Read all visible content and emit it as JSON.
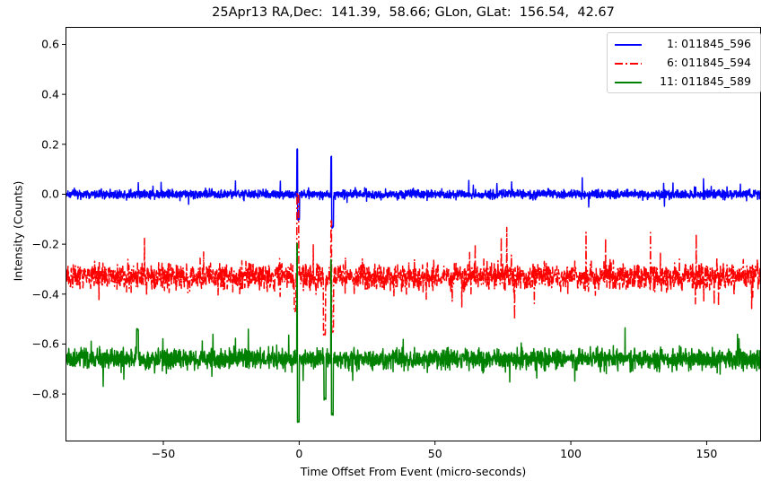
{
  "chart_data": {
    "type": "line",
    "title": "25Apr13 RA,Dec:  141.39,  58.66; GLon, GLat:  156.54,  42.67",
    "xlabel": "Time Offset From Event (micro-seconds)",
    "ylabel": "Intensity (Counts)",
    "xlim": [
      -86,
      170
    ],
    "ylim": [
      -0.99,
      0.67
    ],
    "xticks": [
      -50,
      0,
      50,
      100,
      150
    ],
    "xtick_labels": [
      "−50",
      "0",
      "50",
      "100",
      "150"
    ],
    "yticks": [
      0.6,
      0.4,
      0.2,
      0.0,
      -0.2,
      -0.4,
      -0.6,
      -0.8
    ],
    "ytick_labels": [
      "0.6",
      "0.4",
      "0.2",
      "0.0",
      "−0.2",
      "−0.4",
      "−0.6",
      "−0.8"
    ],
    "grid": false,
    "legend_position": "upper right",
    "series": [
      {
        "name": "1: 011845_596",
        "label": " 1: 011845_596",
        "color": "#0000ff",
        "linestyle": "solid",
        "baseline": 0.0,
        "noise_amplitude": 0.03,
        "spikes": [
          {
            "x": -0.5,
            "y": 0.18
          },
          {
            "x": 12.0,
            "y": 0.15
          },
          {
            "x": -0.2,
            "y": -0.1
          },
          {
            "x": 12.3,
            "y": -0.13
          }
        ]
      },
      {
        "name": "6: 011845_594",
        "label": " 6: 011845_594",
        "color": "#ff0000",
        "linestyle": "dashdot",
        "baseline": -0.33,
        "noise_amplitude": 0.09,
        "spikes": [
          {
            "x": -0.5,
            "y": 0.0
          },
          {
            "x": 12.0,
            "y": -0.11
          },
          {
            "x": 9.3,
            "y": -0.56
          },
          {
            "x": 12.3,
            "y": -0.55
          },
          {
            "x": -1.5,
            "y": -0.47
          }
        ]
      },
      {
        "name": "11: 011845_589",
        "label": "11: 011845_589",
        "color": "#008000",
        "linestyle": "solid",
        "baseline": -0.66,
        "noise_amplitude": 0.07,
        "spikes": [
          {
            "x": -0.5,
            "y": -0.2
          },
          {
            "x": 12.0,
            "y": -0.26
          },
          {
            "x": -0.3,
            "y": -0.91
          },
          {
            "x": 12.2,
            "y": -0.88
          },
          {
            "x": 9.5,
            "y": -0.82
          },
          {
            "x": -59.5,
            "y": -0.54
          }
        ]
      }
    ]
  }
}
